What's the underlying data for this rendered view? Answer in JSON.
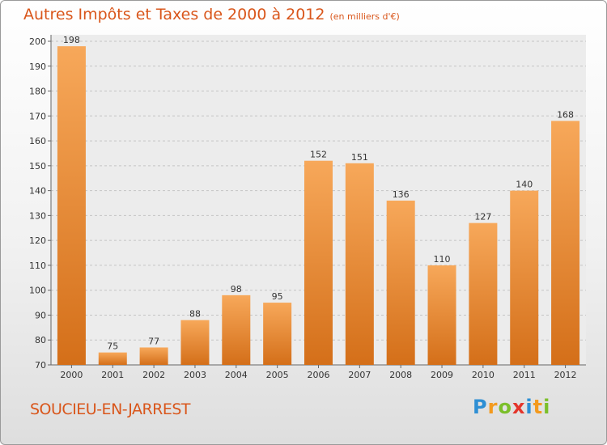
{
  "header": {
    "title": "Autres Impôts et Taxes de 2000 à 2012",
    "subtitle": "(en milliers d'€)"
  },
  "footer": {
    "commune": "SOUCIEU-EN-JARREST",
    "logo_letters": [
      "P",
      "r",
      "o",
      "x",
      "i",
      "t",
      "i"
    ],
    "logo_colors": [
      "#2e8fd4",
      "#f39a1e",
      "#7bbf2a",
      "#e4352b",
      "#2e8fd4",
      "#f39a1e",
      "#7bbf2a"
    ]
  },
  "colors": {
    "bar_top": "#f7a85a",
    "bar_bottom": "#d46f19",
    "text_accent": "#d9561b"
  },
  "chart_data": {
    "type": "bar",
    "categories": [
      "2000",
      "2001",
      "2002",
      "2003",
      "2004",
      "2005",
      "2006",
      "2007",
      "2008",
      "2009",
      "2010",
      "2011",
      "2012"
    ],
    "values": [
      198,
      75,
      77,
      88,
      98,
      95,
      152,
      151,
      136,
      110,
      127,
      140,
      168
    ],
    "data_labels": [
      "198",
      "75",
      "77",
      "88",
      "98",
      "95",
      "152",
      "151",
      "136",
      "110",
      "127",
      "140",
      "168"
    ],
    "title": "Autres Impôts et Taxes de 2000 à 2012",
    "xlabel": "",
    "ylabel": "",
    "ylim": [
      70,
      200
    ],
    "yticks": [
      70,
      80,
      90,
      100,
      110,
      120,
      130,
      140,
      150,
      160,
      170,
      180,
      190,
      200
    ],
    "grid": "horizontal dashed"
  }
}
